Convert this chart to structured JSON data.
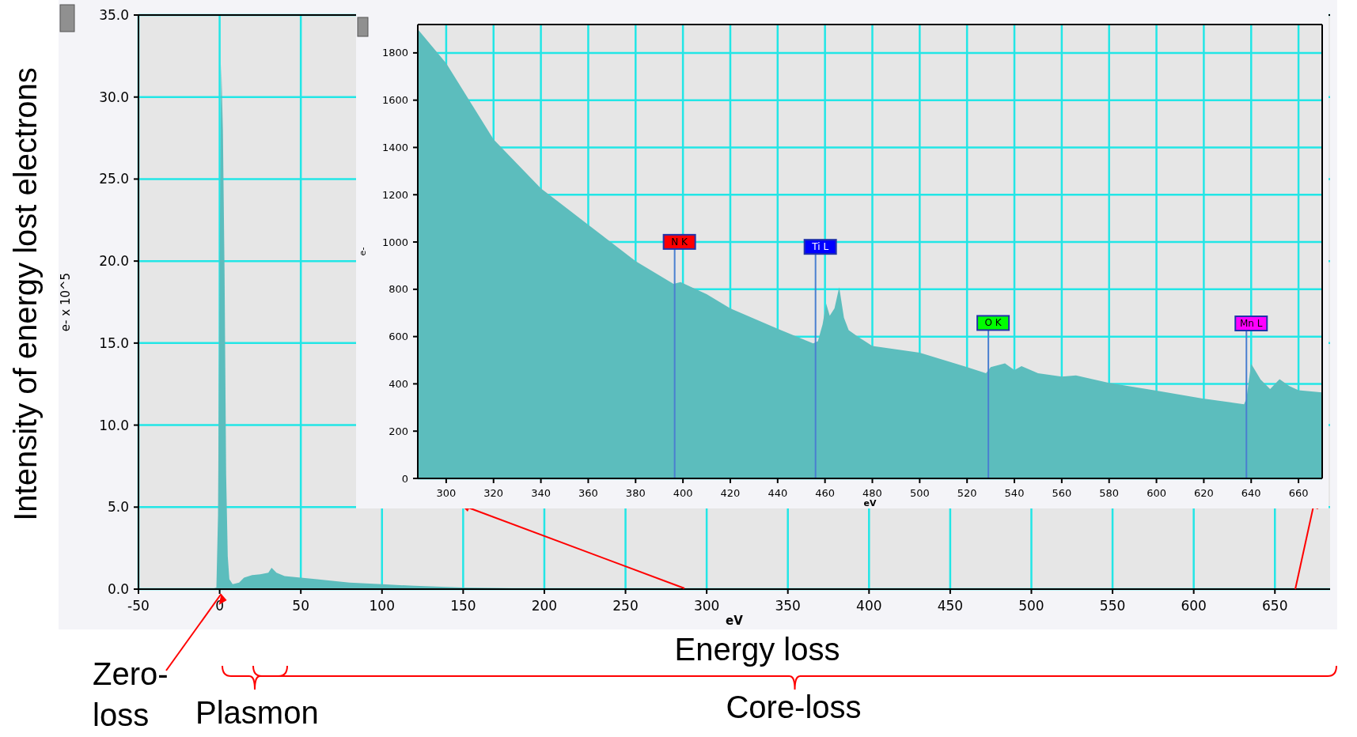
{
  "chart_data": [
    {
      "type": "area",
      "xlabel": "eV",
      "ylabel": "e- x 10^5",
      "xlim": [
        -50,
        684
      ],
      "ylim": [
        0,
        35
      ],
      "xticks": [
        -50,
        0,
        50,
        100,
        150,
        200,
        250,
        300,
        350,
        400,
        450,
        500,
        550,
        600,
        650
      ],
      "yticks": [
        {
          "value": 0,
          "label": "0.0"
        },
        {
          "value": 5,
          "label": "5.0"
        },
        {
          "value": 10,
          "label": "10.0"
        },
        {
          "value": 15,
          "label": "15.0"
        },
        {
          "value": 20,
          "label": "20.0"
        },
        {
          "value": 25,
          "label": "25.0"
        },
        {
          "value": 30,
          "label": "30.0"
        },
        {
          "value": 35,
          "label": "35.0"
        }
      ],
      "grid": true,
      "x": [
        -5,
        -2,
        -1,
        0,
        1,
        2,
        3,
        4,
        5,
        6,
        8,
        12,
        15,
        20,
        25,
        30,
        32,
        35,
        40,
        50,
        60,
        80,
        100,
        120,
        150,
        180,
        200,
        300,
        684
      ],
      "series": [
        {
          "color": "#5cbdbd",
          "values": [
            0,
            0.1,
            4.5,
            20,
            32,
            28,
            19.5,
            7,
            2,
            0.6,
            0.3,
            0.4,
            0.7,
            0.85,
            0.9,
            1.0,
            1.3,
            1.0,
            0.8,
            0.7,
            0.6,
            0.4,
            0.3,
            0.2,
            0.1,
            0.05,
            0.03,
            0.02,
            0.01
          ]
        }
      ],
      "annotations": [
        "Intensity of energy lost electrons",
        "Energy loss",
        {
          "text": "Zero-loss",
          "x": 0,
          "y": 0
        },
        "Plasmon",
        "Core-loss"
      ]
    },
    {
      "type": "area",
      "xlabel": "eV",
      "ylabel": "e-",
      "xlim": [
        288,
        670
      ],
      "ylim": [
        0,
        1920
      ],
      "xticks": [
        300,
        320,
        340,
        360,
        380,
        400,
        420,
        440,
        460,
        480,
        500,
        520,
        540,
        560,
        580,
        600,
        620,
        640,
        660
      ],
      "yticks": [
        0,
        200,
        400,
        600,
        800,
        1000,
        1200,
        1400,
        1600,
        1800
      ],
      "grid": true,
      "x": [
        288,
        300,
        320,
        340,
        360,
        380,
        396,
        399,
        410,
        420,
        440,
        455,
        457,
        459,
        460.5,
        462,
        464,
        466,
        468,
        470,
        474,
        480,
        500,
        520,
        528,
        530,
        536,
        540,
        543,
        550,
        560,
        566,
        580,
        600,
        620,
        637,
        638,
        640,
        644,
        648,
        652,
        656,
        660,
        670
      ],
      "series": [
        {
          "color": "#5cbdbd",
          "values": [
            1900,
            1756,
            1434,
            1227,
            1073,
            919,
            823,
            830,
            779,
            719,
            633,
            571,
            580,
            652,
            739,
            688,
            719,
            809,
            680,
            627,
            599,
            560,
            532,
            471,
            445,
            471,
            487,
            458,
            475,
            445,
            431,
            436,
            404,
            371,
            337,
            314,
            337,
            485,
            418,
            378,
            420,
            391,
            373,
            364
          ]
        }
      ],
      "ref_lines": [
        {
          "axis": "x",
          "value": 396.5,
          "label": "N K"
        },
        {
          "axis": "x",
          "value": 456,
          "label": "Ti L"
        },
        {
          "axis": "x",
          "value": 529,
          "label": "O K"
        },
        {
          "axis": "x",
          "value": 638,
          "label": "Mn L"
        }
      ]
    }
  ]
}
